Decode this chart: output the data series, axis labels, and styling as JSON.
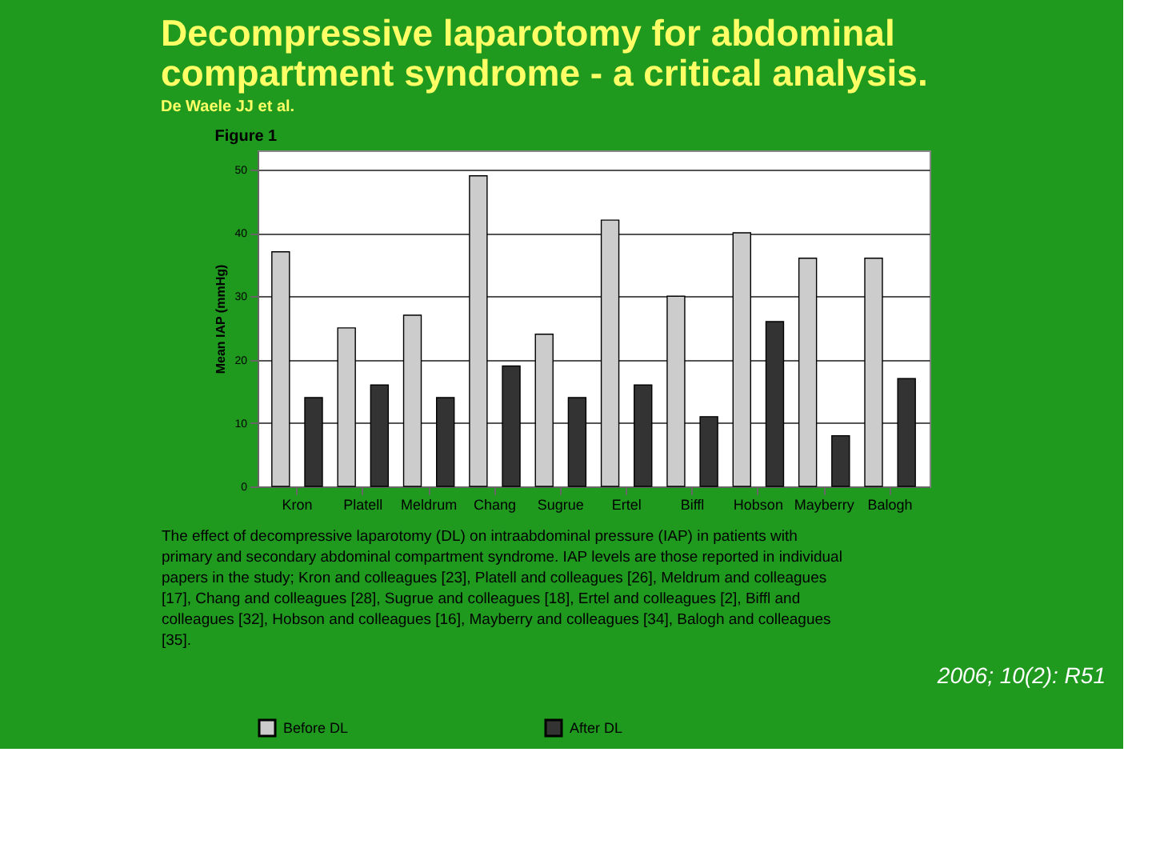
{
  "chart_data": {
    "type": "bar",
    "title": "Decompressive laparotomy for abdominal compartment syndrome - a critical analysis.",
    "subtitle": "De Waele JJ et al.",
    "categories": [
      "Kron",
      "Platell",
      "Meldrum",
      "Chang",
      "Sugrue",
      "Ertel",
      "Biffl",
      "Hobson",
      "Mayberry",
      "Balogh"
    ],
    "series": [
      {
        "name": "Before DL",
        "color": "#cccccc",
        "values": [
          37,
          25,
          27,
          49,
          24,
          42,
          30,
          40,
          36,
          36
        ]
      },
      {
        "name": "After DL",
        "color": "#333333",
        "values": [
          14,
          16,
          14,
          19,
          14,
          16,
          11,
          26,
          8,
          17
        ]
      }
    ],
    "ylabel": "Mean IAP (mmHg)",
    "ylim": [
      0,
      53
    ],
    "yticks": [
      0,
      10,
      20,
      30,
      40,
      50
    ],
    "grid": "y",
    "legend": "bottom",
    "annotations": [
      "Figure 1",
      "The effect of decompressive laparotomy (DL) on intraabdominal pressure (IAP) in patients with primary and secondary abdominal compartment syndrome. IAP levels are those reported in individual papers in the study; Kron and colleagues [23], Platell and colleagues [26], Meldrum and colleagues [17], Chang and colleagues [28], Sugrue and colleagues [18], Ertel and colleagues [2], Biffl and colleagues [32], Hobson and colleagues [16], Mayberry and colleagues [34], Balogh and colleagues [35].",
      "2006; 10(2): R51"
    ]
  }
}
